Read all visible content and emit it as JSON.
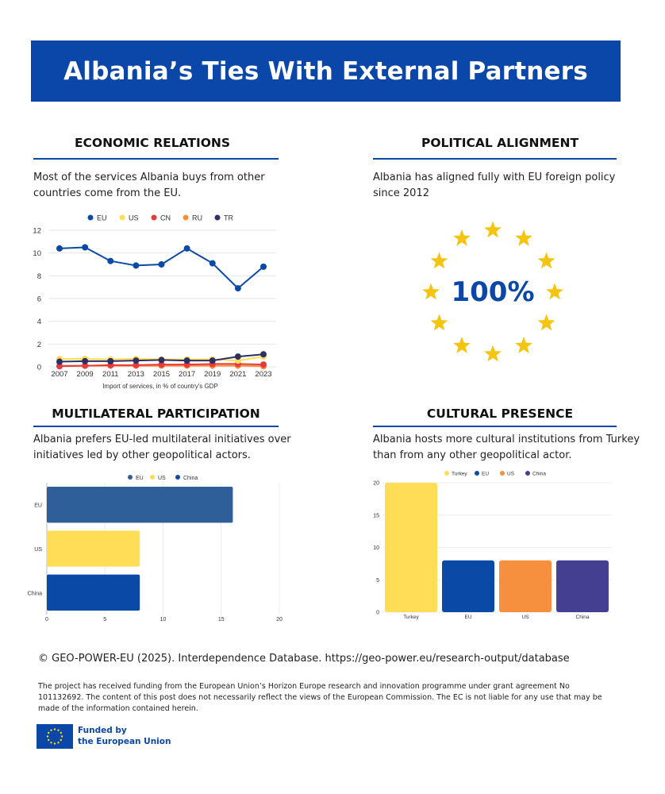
{
  "banner": {
    "title": "Albania’s Ties With External Partners"
  },
  "colors": {
    "eu": "#0b49a6",
    "us": "#ffdd57",
    "cn": "#e8393b",
    "ru": "#f7903e",
    "tr": "#2e2f63",
    "rule": "#0a47a9",
    "china_purple": "#443f90",
    "eu_bar": "#2f5f98"
  },
  "economic": {
    "title": "ECONOMIC RELATIONS",
    "desc_line1": "Most of the services Albania buys from other",
    "desc_line2": "countries come from the EU."
  },
  "political": {
    "title": "POLITICAL ALIGNMENT",
    "desc_line1": "Albania has aligned fully with EU foreign policy",
    "desc_line2": "since 2012",
    "value": "100%"
  },
  "multilateral": {
    "title": "MULTILATERAL PARTICIPATION",
    "desc_line1": "Albania prefers EU-led multilateral initiatives over",
    "desc_line2": "initiatives led by other geopolitical actors."
  },
  "cultural": {
    "title": "CULTURAL PRESENCE",
    "desc_line1": "Albania hosts more cultural institutions from Turkey",
    "desc_line2": "than from any other geopolitical actor."
  },
  "chart_data": [
    {
      "type": "line",
      "title": "",
      "xlabel": "Import of services, in % of country's GDP",
      "ylabel": "",
      "x": [
        "2007",
        "2009",
        "2011",
        "2013",
        "2015",
        "2017",
        "2019",
        "2021",
        "2023"
      ],
      "ylim": [
        0,
        12
      ],
      "yticks": [
        0,
        2,
        4,
        6,
        8,
        10,
        12
      ],
      "series": [
        {
          "name": "EU",
          "color": "#0b49a6",
          "values": [
            10.4,
            10.5,
            9.3,
            8.9,
            9.0,
            10.4,
            9.1,
            6.9,
            8.8
          ]
        },
        {
          "name": "US",
          "color": "#ffdd57",
          "values": [
            0.7,
            0.7,
            0.65,
            0.7,
            0.65,
            0.65,
            0.65,
            0.55,
            0.9
          ]
        },
        {
          "name": "CN",
          "color": "#e8393b",
          "values": [
            0.05,
            0.1,
            0.15,
            0.15,
            0.2,
            0.2,
            0.25,
            0.25,
            0.2
          ]
        },
        {
          "name": "RU",
          "color": "#f7903e",
          "values": [
            0.1,
            0.1,
            0.1,
            0.1,
            0.1,
            0.1,
            0.1,
            0.1,
            0.05
          ]
        },
        {
          "name": "TR",
          "color": "#2e2f63",
          "values": [
            0.45,
            0.5,
            0.5,
            0.55,
            0.6,
            0.55,
            0.55,
            0.9,
            1.1
          ]
        }
      ]
    },
    {
      "type": "bar",
      "orientation": "horizontal",
      "categories": [
        "EU",
        "US",
        "China"
      ],
      "values": [
        16,
        8,
        8
      ],
      "colors": [
        "#2f5f98",
        "#ffdd57",
        "#0b49a6"
      ],
      "legend": [
        "EU",
        "US",
        "China"
      ],
      "xlim": [
        0,
        20
      ],
      "xticks": [
        0,
        5,
        10,
        15,
        20
      ]
    },
    {
      "type": "bar",
      "categories": [
        "Turkey",
        "EU",
        "US",
        "China"
      ],
      "values": [
        20,
        8,
        8,
        8
      ],
      "colors": [
        "#ffdd57",
        "#0b49a6",
        "#f7903e",
        "#443f90"
      ],
      "legend": [
        "Turkey",
        "EU",
        "US",
        "China"
      ],
      "ylim": [
        0,
        20
      ],
      "yticks": [
        0,
        5,
        10,
        15,
        20
      ]
    }
  ],
  "footer": {
    "source": "© GEO-POWER-EU (2025). Interdependence Database. https://geo-power.eu/research-output/database",
    "disclaimer": "The project has received funding from the European Union’s Horizon Europe research and innovation programme under grant agreement No 101132692. The content of this post does not necessarily reflect the views of the European Commission. The EC is not liable for any use that may be made of the information contained herein.",
    "funded_line1": "Funded by",
    "funded_line2": "the European Union"
  }
}
